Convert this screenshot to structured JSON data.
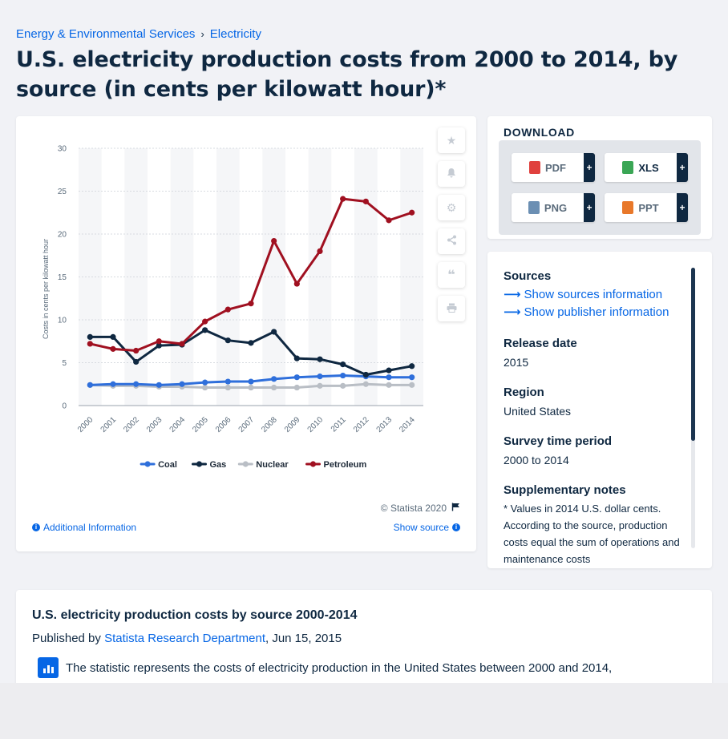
{
  "breadcrumb": {
    "items": [
      "Energy & Environmental Services",
      "Electricity"
    ],
    "separator": "›"
  },
  "title": "U.S. electricity production costs from 2000 to 2014, by source (in cents per kilowatt hour)*",
  "chart_data": {
    "type": "line",
    "ylabel": "Costs in cents per kilowatt hour",
    "xlabel": "",
    "ylim": [
      0,
      30
    ],
    "yticks": [
      0,
      5,
      10,
      15,
      20,
      25,
      30
    ],
    "categories": [
      "2000",
      "2001",
      "2002",
      "2003",
      "2004",
      "2005",
      "2006",
      "2007",
      "2008",
      "2009",
      "2010",
      "2011",
      "2012",
      "2013",
      "2014"
    ],
    "grid": true,
    "legend_position": "bottom",
    "series": [
      {
        "name": "Coal",
        "color": "#2f6fdb",
        "values": [
          2.4,
          2.5,
          2.5,
          2.4,
          2.5,
          2.7,
          2.8,
          2.8,
          3.1,
          3.3,
          3.4,
          3.5,
          3.4,
          3.3,
          3.3
        ]
      },
      {
        "name": "Gas",
        "color": "#0f2841",
        "values": [
          8.0,
          8.0,
          5.1,
          7.0,
          7.1,
          8.8,
          7.6,
          7.3,
          8.6,
          5.5,
          5.4,
          4.8,
          3.6,
          4.1,
          4.6
        ]
      },
      {
        "name": "Nuclear",
        "color": "#b9bec5",
        "values": [
          2.4,
          2.3,
          2.3,
          2.2,
          2.2,
          2.1,
          2.1,
          2.1,
          2.1,
          2.1,
          2.3,
          2.3,
          2.5,
          2.4,
          2.4
        ]
      },
      {
        "name": "Petroleum",
        "color": "#a01020",
        "values": [
          7.2,
          6.6,
          6.4,
          7.5,
          7.2,
          9.8,
          11.2,
          11.9,
          19.2,
          14.2,
          18.0,
          24.1,
          23.8,
          21.6,
          22.5
        ]
      }
    ]
  },
  "chart_footer": {
    "copyright": "© Statista 2020",
    "additional_info": "Additional Information",
    "show_source": "Show source"
  },
  "download": {
    "title": "DOWNLOAD",
    "buttons": [
      {
        "label": "PDF",
        "color": "#e0413e"
      },
      {
        "label": "XLS",
        "color": "#3aa655"
      },
      {
        "label": "PNG",
        "color": "#6b8fb3"
      },
      {
        "label": "PPT",
        "color": "#e8782a"
      }
    ],
    "plus": "+"
  },
  "info": {
    "sources_heading": "Sources",
    "show_sources": "Show sources information",
    "show_publisher": "Show publisher information",
    "release_heading": "Release date",
    "release_value": "2015",
    "region_heading": "Region",
    "region_value": "United States",
    "period_heading": "Survey time period",
    "period_value": "2000 to 2014",
    "notes_heading": "Supplementary notes",
    "notes_value": "* Values in 2014 U.S. dollar cents. According to the source, production costs equal the sum of operations and maintenance costs"
  },
  "description": {
    "title": "U.S. electricity production costs by source 2000-2014",
    "published_prefix": "Published by ",
    "publisher": "Statista Research Department",
    "published_date": ", Jun 15, 2015",
    "text": "The statistic represents the costs of electricity production in the United States between 2000 and 2014,"
  }
}
